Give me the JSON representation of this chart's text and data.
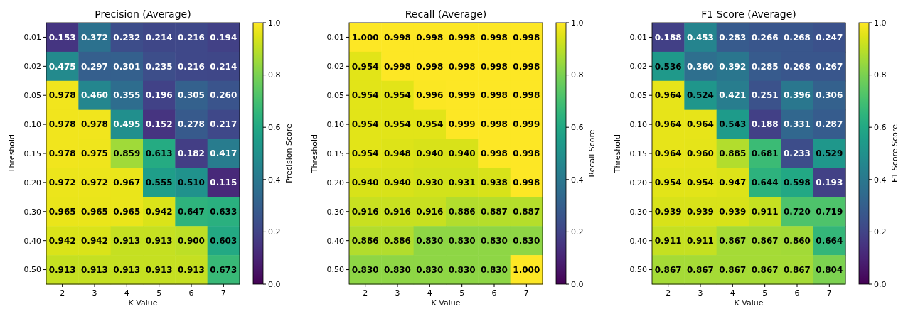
{
  "chart_data": [
    {
      "type": "heatmap",
      "title": "Precision (Average)",
      "xlabel": "K Value",
      "ylabel": "Threshold",
      "clabel": "Precision Score",
      "categories": [
        "2",
        "3",
        "4",
        "5",
        "6",
        "7"
      ],
      "y_categories": [
        "0.01",
        "0.02",
        "0.05",
        "0.10",
        "0.15",
        "0.20",
        "0.30",
        "0.40",
        "0.50"
      ],
      "cells": [
        [
          0.153,
          0.372,
          0.232,
          0.214,
          0.216,
          0.194
        ],
        [
          0.475,
          0.297,
          0.301,
          0.235,
          0.216,
          0.214
        ],
        [
          0.978,
          0.46,
          0.355,
          0.196,
          0.305,
          0.26
        ],
        [
          0.978,
          0.978,
          0.495,
          0.152,
          0.278,
          0.217
        ],
        [
          0.978,
          0.975,
          0.859,
          0.613,
          0.182,
          0.417
        ],
        [
          0.972,
          0.972,
          0.967,
          0.555,
          0.51,
          0.115
        ],
        [
          0.965,
          0.965,
          0.965,
          0.942,
          0.647,
          0.633
        ],
        [
          0.942,
          0.942,
          0.913,
          0.913,
          0.9,
          0.603
        ],
        [
          0.913,
          0.913,
          0.913,
          0.913,
          0.913,
          0.673
        ]
      ],
      "cell_labels": [
        [
          "0.153",
          "0.372",
          "0.232",
          "0.214",
          "0.216",
          "0.194"
        ],
        [
          "0.475",
          "0.297",
          "0.301",
          "0.235",
          "0.216",
          "0.214"
        ],
        [
          "0.978",
          "0.460",
          "0.355",
          "0.196",
          "0.305",
          "0.260"
        ],
        [
          "0.978",
          "0.978",
          "0.495",
          "0.152",
          "0.278",
          "0.217"
        ],
        [
          "0.978",
          "0.975",
          "0.859",
          "0.613",
          "0.182",
          "0.417"
        ],
        [
          "0.972",
          "0.972",
          "0.967",
          "0.555",
          "0.510",
          "0.115"
        ],
        [
          "0.965",
          "0.965",
          "0.965",
          "0.942",
          "0.647",
          "0.633"
        ],
        [
          "0.942",
          "0.942",
          "0.913",
          "0.913",
          "0.900",
          "0.603"
        ],
        [
          "0.913",
          "0.913",
          "0.913",
          "0.913",
          "0.913",
          "0.673"
        ]
      ],
      "clim": [
        0,
        1
      ],
      "cticks": [
        {
          "value": 0,
          "label": "0.0"
        },
        {
          "value": 0.2,
          "label": "0.2"
        },
        {
          "value": 0.4,
          "label": "0.4"
        },
        {
          "value": 0.6,
          "label": "0.6"
        },
        {
          "value": 0.8,
          "label": "0.8"
        },
        {
          "value": 1,
          "label": "1.0"
        }
      ]
    },
    {
      "type": "heatmap",
      "title": "Recall (Average)",
      "xlabel": "K Value",
      "ylabel": "Threshold",
      "clabel": "Recall Score",
      "categories": [
        "2",
        "3",
        "4",
        "5",
        "6",
        "7"
      ],
      "y_categories": [
        "0.01",
        "0.02",
        "0.05",
        "0.10",
        "0.15",
        "0.20",
        "0.30",
        "0.40",
        "0.50"
      ],
      "cells": [
        [
          1.0,
          0.998,
          0.998,
          0.998,
          0.998,
          0.998
        ],
        [
          0.954,
          0.998,
          0.998,
          0.998,
          0.998,
          0.998
        ],
        [
          0.954,
          0.954,
          0.996,
          0.999,
          0.998,
          0.998
        ],
        [
          0.954,
          0.954,
          0.954,
          0.999,
          0.998,
          0.999
        ],
        [
          0.954,
          0.948,
          0.94,
          0.94,
          0.998,
          0.998
        ],
        [
          0.94,
          0.94,
          0.93,
          0.931,
          0.938,
          0.998
        ],
        [
          0.916,
          0.916,
          0.916,
          0.886,
          0.887,
          0.887
        ],
        [
          0.886,
          0.886,
          0.83,
          0.83,
          0.83,
          0.83
        ],
        [
          0.83,
          0.83,
          0.83,
          0.83,
          0.83,
          1.0
        ]
      ],
      "cell_labels": [
        [
          "1.000",
          "0.998",
          "0.998",
          "0.998",
          "0.998",
          "0.998"
        ],
        [
          "0.954",
          "0.998",
          "0.998",
          "0.998",
          "0.998",
          "0.998"
        ],
        [
          "0.954",
          "0.954",
          "0.996",
          "0.999",
          "0.998",
          "0.998"
        ],
        [
          "0.954",
          "0.954",
          "0.954",
          "0.999",
          "0.998",
          "0.999"
        ],
        [
          "0.954",
          "0.948",
          "0.940",
          "0.940",
          "0.998",
          "0.998"
        ],
        [
          "0.940",
          "0.940",
          "0.930",
          "0.931",
          "0.938",
          "0.998"
        ],
        [
          "0.916",
          "0.916",
          "0.916",
          "0.886",
          "0.887",
          "0.887"
        ],
        [
          "0.886",
          "0.886",
          "0.830",
          "0.830",
          "0.830",
          "0.830"
        ],
        [
          "0.830",
          "0.830",
          "0.830",
          "0.830",
          "0.830",
          "1.000"
        ]
      ],
      "clim": [
        0,
        1
      ],
      "cticks": [
        {
          "value": 0,
          "label": "0.0"
        },
        {
          "value": 0.2,
          "label": "0.2"
        },
        {
          "value": 0.4,
          "label": "0.4"
        },
        {
          "value": 0.6,
          "label": "0.6"
        },
        {
          "value": 0.8,
          "label": "0.8"
        },
        {
          "value": 1,
          "label": "1.0"
        }
      ]
    },
    {
      "type": "heatmap",
      "title": "F1 Score (Average)",
      "xlabel": "K Value",
      "ylabel": "Threshold",
      "clabel": "F1 Score Score",
      "categories": [
        "2",
        "3",
        "4",
        "5",
        "6",
        "7"
      ],
      "y_categories": [
        "0.01",
        "0.02",
        "0.05",
        "0.10",
        "0.15",
        "0.20",
        "0.30",
        "0.40",
        "0.50"
      ],
      "cells": [
        [
          0.188,
          0.453,
          0.283,
          0.266,
          0.268,
          0.247
        ],
        [
          0.536,
          0.36,
          0.392,
          0.285,
          0.268,
          0.267
        ],
        [
          0.964,
          0.524,
          0.421,
          0.251,
          0.396,
          0.306
        ],
        [
          0.964,
          0.964,
          0.543,
          0.188,
          0.331,
          0.287
        ],
        [
          0.964,
          0.96,
          0.885,
          0.681,
          0.233,
          0.529
        ],
        [
          0.954,
          0.954,
          0.947,
          0.644,
          0.598,
          0.193
        ],
        [
          0.939,
          0.939,
          0.939,
          0.911,
          0.72,
          0.719
        ],
        [
          0.911,
          0.911,
          0.867,
          0.867,
          0.86,
          0.664
        ],
        [
          0.867,
          0.867,
          0.867,
          0.867,
          0.867,
          0.804
        ]
      ],
      "cell_labels": [
        [
          "0.188",
          "0.453",
          "0.283",
          "0.266",
          "0.268",
          "0.247"
        ],
        [
          "0.536",
          "0.360",
          "0.392",
          "0.285",
          "0.268",
          "0.267"
        ],
        [
          "0.964",
          "0.524",
          "0.421",
          "0.251",
          "0.396",
          "0.306"
        ],
        [
          "0.964",
          "0.964",
          "0.543",
          "0.188",
          "0.331",
          "0.287"
        ],
        [
          "0.964",
          "0.960",
          "0.885",
          "0.681",
          "0.233",
          "0.529"
        ],
        [
          "0.954",
          "0.954",
          "0.947",
          "0.644",
          "0.598",
          "0.193"
        ],
        [
          "0.939",
          "0.939",
          "0.939",
          "0.911",
          "0.720",
          "0.719"
        ],
        [
          "0.911",
          "0.911",
          "0.867",
          "0.867",
          "0.860",
          "0.664"
        ],
        [
          "0.867",
          "0.867",
          "0.867",
          "0.867",
          "0.867",
          "0.804"
        ]
      ],
      "clim": [
        0,
        1
      ],
      "cticks": [
        {
          "value": 0,
          "label": "0.0"
        },
        {
          "value": 0.2,
          "label": "0.2"
        },
        {
          "value": 0.4,
          "label": "0.4"
        },
        {
          "value": 0.6,
          "label": "0.6"
        },
        {
          "value": 0.8,
          "label": "0.8"
        },
        {
          "value": 1,
          "label": "1.0"
        }
      ]
    }
  ]
}
